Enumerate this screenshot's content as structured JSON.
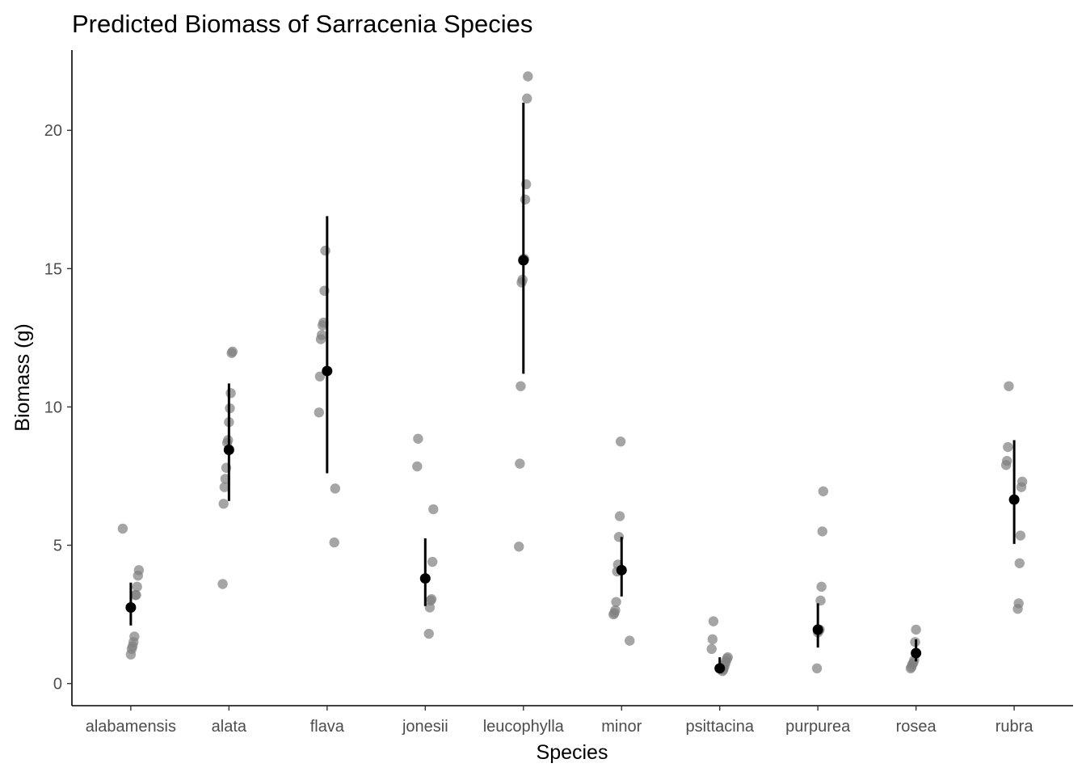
{
  "chart_data": {
    "type": "scatter",
    "title": "Predicted Biomass of Sarracenia Species",
    "xlabel": "Species",
    "ylabel": "Biomass (g)",
    "categories": [
      "alabamensis",
      "alata",
      "flava",
      "jonesii",
      "leucophylla",
      "minor",
      "psittacina",
      "purpurea",
      "rosea",
      "rubra"
    ],
    "ylim": [
      -0.8,
      22.9
    ],
    "yticks": [
      0,
      5,
      10,
      15,
      20
    ],
    "grid": false,
    "raw_color": "#7f7f7f",
    "summary_color": "#000000",
    "raw_points": [
      {
        "species": "alabamensis",
        "values": [
          5.6,
          4.1,
          3.9,
          3.5,
          3.2,
          3.2,
          1.7,
          1.5,
          1.35,
          1.25,
          1.05
        ]
      },
      {
        "species": "alata",
        "values": [
          12.0,
          11.95,
          10.5,
          9.95,
          9.45,
          8.8,
          8.7,
          7.8,
          7.4,
          7.1,
          6.5,
          3.6
        ]
      },
      {
        "species": "flava",
        "values": [
          15.65,
          14.2,
          13.05,
          12.95,
          12.6,
          12.45,
          11.1,
          9.8,
          7.05,
          5.1
        ]
      },
      {
        "species": "jonesii",
        "values": [
          8.85,
          7.85,
          6.3,
          4.4,
          3.05,
          3.0,
          2.75,
          1.8
        ]
      },
      {
        "species": "leucophylla",
        "values": [
          21.95,
          21.15,
          18.05,
          17.5,
          15.35,
          15.35,
          14.6,
          14.5,
          10.75,
          7.95,
          4.95
        ]
      },
      {
        "species": "minor",
        "values": [
          8.75,
          6.05,
          5.3,
          4.3,
          4.05,
          2.95,
          2.65,
          2.55,
          2.5,
          1.55
        ]
      },
      {
        "species": "psittacina",
        "values": [
          2.25,
          1.6,
          1.25,
          0.95,
          0.9,
          0.8,
          0.7,
          0.6,
          0.5,
          0.45
        ]
      },
      {
        "species": "purpurea",
        "values": [
          6.95,
          5.5,
          3.5,
          3.0,
          1.95,
          1.9,
          1.85,
          0.55
        ]
      },
      {
        "species": "rosea",
        "values": [
          1.95,
          1.5,
          0.85,
          0.75,
          0.7,
          0.6,
          0.55
        ]
      },
      {
        "species": "rubra",
        "values": [
          10.75,
          8.55,
          8.05,
          7.9,
          7.3,
          7.1,
          5.35,
          4.35,
          2.9,
          2.7
        ]
      }
    ],
    "predicted": [
      {
        "species": "alabamensis",
        "mean": 2.75,
        "lower": 2.1,
        "upper": 3.65
      },
      {
        "species": "alata",
        "mean": 8.45,
        "lower": 6.6,
        "upper": 10.85
      },
      {
        "species": "flava",
        "mean": 11.3,
        "lower": 7.6,
        "upper": 16.9
      },
      {
        "species": "jonesii",
        "mean": 3.8,
        "lower": 2.8,
        "upper": 5.25
      },
      {
        "species": "leucophylla",
        "mean": 15.3,
        "lower": 11.2,
        "upper": 21.0
      },
      {
        "species": "minor",
        "mean": 4.1,
        "lower": 3.15,
        "upper": 5.3
      },
      {
        "species": "psittacina",
        "mean": 0.55,
        "lower": 0.4,
        "upper": 0.95
      },
      {
        "species": "purpurea",
        "mean": 1.95,
        "lower": 1.3,
        "upper": 2.9
      },
      {
        "species": "rosea",
        "mean": 1.1,
        "lower": 0.8,
        "upper": 1.6
      },
      {
        "species": "rubra",
        "mean": 6.65,
        "lower": 5.05,
        "upper": 8.8
      }
    ]
  }
}
